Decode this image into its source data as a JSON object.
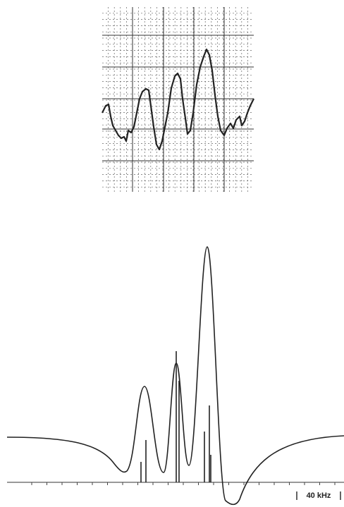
{
  "scale_label": "40 kHz"
}
